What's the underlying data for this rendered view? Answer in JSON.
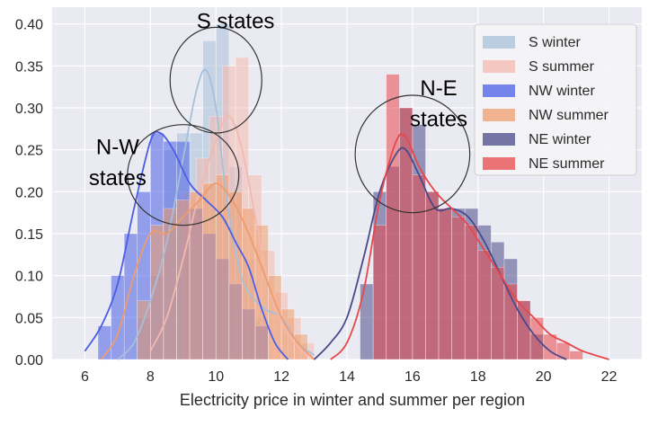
{
  "chart_data": {
    "type": "bar",
    "title": "",
    "xlabel": "Electricity price in winter and summer per region",
    "ylabel": "",
    "xlim": [
      5,
      23
    ],
    "ylim": [
      0,
      0.42
    ],
    "grid": true,
    "legend_position": "top-right",
    "x_ticks": [
      6,
      8,
      10,
      12,
      14,
      16,
      18,
      20,
      22
    ],
    "x_tick_labels": [
      "6",
      "8",
      "10",
      "12",
      "14",
      "16",
      "18",
      "20",
      "22"
    ],
    "y_ticks": [
      0.0,
      0.05,
      0.1,
      0.15,
      0.2,
      0.25,
      0.3,
      0.35,
      0.4
    ],
    "y_tick_labels": [
      "0.00",
      "0.05",
      "0.10",
      "0.15",
      "0.20",
      "0.25",
      "0.30",
      "0.35",
      "0.40"
    ],
    "series": [
      {
        "name": "S winter",
        "color": "#a7c0d9",
        "bin_width": 0.4,
        "bins": [
          [
            7.6,
            0.05
          ],
          [
            8.0,
            0.1
          ],
          [
            8.4,
            0.25
          ],
          [
            8.8,
            0.27
          ],
          [
            9.2,
            0.27
          ],
          [
            9.6,
            0.38
          ],
          [
            10.0,
            0.4
          ],
          [
            10.4,
            0.23
          ],
          [
            10.8,
            0.12
          ],
          [
            11.2,
            0.05
          ]
        ],
        "kde": [
          [
            7.0,
            0.0
          ],
          [
            7.5,
            0.02
          ],
          [
            8.0,
            0.07
          ],
          [
            8.5,
            0.14
          ],
          [
            9.0,
            0.24
          ],
          [
            9.4,
            0.32
          ],
          [
            9.7,
            0.345
          ],
          [
            10.0,
            0.3
          ],
          [
            10.3,
            0.2
          ],
          [
            10.7,
            0.11
          ],
          [
            11.0,
            0.08
          ],
          [
            11.5,
            0.06
          ],
          [
            12.0,
            0.05
          ],
          [
            12.5,
            0.02
          ],
          [
            13.0,
            0.005
          ]
        ]
      },
      {
        "name": "S summer",
        "color": "#f4b9ae",
        "bin_width": 0.4,
        "bins": [
          [
            9.0,
            0.2
          ],
          [
            9.4,
            0.24
          ],
          [
            9.8,
            0.29
          ],
          [
            10.2,
            0.35
          ],
          [
            10.6,
            0.36
          ],
          [
            11.0,
            0.22
          ],
          [
            11.4,
            0.13
          ],
          [
            11.8,
            0.08
          ],
          [
            12.2,
            0.05
          ],
          [
            12.6,
            0.02
          ]
        ],
        "kde": [
          [
            8.0,
            0.01
          ],
          [
            8.5,
            0.05
          ],
          [
            9.0,
            0.12
          ],
          [
            9.5,
            0.2
          ],
          [
            10.0,
            0.26
          ],
          [
            10.4,
            0.29
          ],
          [
            10.8,
            0.25
          ],
          [
            11.2,
            0.17
          ],
          [
            11.6,
            0.09
          ],
          [
            12.0,
            0.045
          ],
          [
            12.5,
            0.015
          ],
          [
            13.0,
            0.0
          ]
        ]
      },
      {
        "name": "NW winter",
        "color": "#4a5fe6",
        "bin_width": 0.4,
        "bins": [
          [
            6.4,
            0.04
          ],
          [
            6.8,
            0.1
          ],
          [
            7.2,
            0.15
          ],
          [
            7.6,
            0.2
          ],
          [
            8.0,
            0.27
          ],
          [
            8.4,
            0.26
          ],
          [
            8.8,
            0.26
          ],
          [
            9.2,
            0.18
          ],
          [
            9.6,
            0.15
          ],
          [
            10.0,
            0.12
          ],
          [
            10.4,
            0.09
          ],
          [
            10.8,
            0.06
          ],
          [
            11.2,
            0.04
          ]
        ],
        "kde": [
          [
            6.0,
            0.01
          ],
          [
            6.5,
            0.04
          ],
          [
            7.0,
            0.09
          ],
          [
            7.5,
            0.18
          ],
          [
            8.0,
            0.26
          ],
          [
            8.3,
            0.27
          ],
          [
            8.7,
            0.25
          ],
          [
            9.2,
            0.21
          ],
          [
            9.7,
            0.19
          ],
          [
            10.2,
            0.17
          ],
          [
            10.6,
            0.14
          ],
          [
            11.0,
            0.11
          ],
          [
            11.4,
            0.06
          ],
          [
            11.8,
            0.02
          ],
          [
            12.2,
            0.0
          ]
        ]
      },
      {
        "name": "NW summer",
        "color": "#ef9c6c",
        "bin_width": 0.4,
        "bins": [
          [
            7.6,
            0.07
          ],
          [
            8.0,
            0.16
          ],
          [
            8.4,
            0.18
          ],
          [
            8.8,
            0.19
          ],
          [
            9.2,
            0.2
          ],
          [
            9.6,
            0.21
          ],
          [
            10.0,
            0.22
          ],
          [
            10.4,
            0.2
          ],
          [
            10.8,
            0.18
          ],
          [
            11.2,
            0.16
          ],
          [
            11.6,
            0.1
          ],
          [
            12.0,
            0.06
          ],
          [
            12.4,
            0.03
          ]
        ],
        "kde": [
          [
            6.5,
            0.0
          ],
          [
            7.0,
            0.03
          ],
          [
            7.5,
            0.1
          ],
          [
            8.0,
            0.15
          ],
          [
            8.5,
            0.15
          ],
          [
            9.0,
            0.17
          ],
          [
            9.5,
            0.19
          ],
          [
            10.0,
            0.21
          ],
          [
            10.5,
            0.19
          ],
          [
            11.0,
            0.15
          ],
          [
            11.5,
            0.1
          ],
          [
            12.0,
            0.05
          ],
          [
            12.5,
            0.02
          ],
          [
            13.0,
            0.0
          ]
        ]
      },
      {
        "name": "NE winter",
        "color": "#4a4a8a",
        "bin_width": 0.4,
        "bins": [
          [
            14.4,
            0.09
          ],
          [
            14.8,
            0.2
          ],
          [
            15.2,
            0.23
          ],
          [
            15.6,
            0.3
          ],
          [
            16.0,
            0.28
          ],
          [
            16.4,
            0.2
          ],
          [
            16.8,
            0.18
          ],
          [
            17.2,
            0.18
          ],
          [
            17.6,
            0.18
          ],
          [
            18.0,
            0.16
          ],
          [
            18.4,
            0.14
          ],
          [
            18.8,
            0.12
          ],
          [
            19.2,
            0.07
          ],
          [
            19.6,
            0.03
          ]
        ],
        "kde": [
          [
            13.0,
            0.0
          ],
          [
            13.5,
            0.02
          ],
          [
            14.0,
            0.05
          ],
          [
            14.5,
            0.12
          ],
          [
            15.0,
            0.2
          ],
          [
            15.5,
            0.245
          ],
          [
            15.8,
            0.25
          ],
          [
            16.2,
            0.22
          ],
          [
            16.7,
            0.18
          ],
          [
            17.2,
            0.18
          ],
          [
            17.7,
            0.17
          ],
          [
            18.2,
            0.14
          ],
          [
            18.7,
            0.1
          ],
          [
            19.2,
            0.06
          ],
          [
            19.7,
            0.03
          ],
          [
            20.2,
            0.01
          ],
          [
            20.7,
            0.0
          ]
        ]
      },
      {
        "name": "NE summer",
        "color": "#e8474a",
        "bin_width": 0.4,
        "bins": [
          [
            14.8,
            0.16
          ],
          [
            15.2,
            0.34
          ],
          [
            15.6,
            0.3
          ],
          [
            16.0,
            0.22
          ],
          [
            16.4,
            0.2
          ],
          [
            16.8,
            0.18
          ],
          [
            17.2,
            0.17
          ],
          [
            17.6,
            0.16
          ],
          [
            18.0,
            0.13
          ],
          [
            18.4,
            0.11
          ],
          [
            18.8,
            0.09
          ],
          [
            19.2,
            0.07
          ],
          [
            19.6,
            0.05
          ],
          [
            20.0,
            0.03
          ],
          [
            20.4,
            0.02
          ],
          [
            20.8,
            0.01
          ]
        ],
        "kde": [
          [
            13.5,
            0.0
          ],
          [
            14.0,
            0.02
          ],
          [
            14.5,
            0.08
          ],
          [
            15.0,
            0.19
          ],
          [
            15.5,
            0.26
          ],
          [
            15.8,
            0.265
          ],
          [
            16.2,
            0.23
          ],
          [
            16.7,
            0.2
          ],
          [
            17.2,
            0.18
          ],
          [
            17.7,
            0.16
          ],
          [
            18.2,
            0.13
          ],
          [
            18.7,
            0.1
          ],
          [
            19.2,
            0.07
          ],
          [
            19.7,
            0.05
          ],
          [
            20.2,
            0.03
          ],
          [
            20.7,
            0.02
          ],
          [
            21.2,
            0.01
          ],
          [
            22.0,
            0.0
          ]
        ]
      }
    ],
    "annotations": [
      {
        "text": "S states",
        "at": [
          10.6,
          0.395
        ]
      },
      {
        "text": "N-W",
        "at": [
          7.0,
          0.245
        ]
      },
      {
        "text": "states",
        "at": [
          7.0,
          0.208
        ]
      },
      {
        "text": "N-E",
        "at": [
          16.8,
          0.315
        ]
      },
      {
        "text": "states",
        "at": [
          16.8,
          0.278
        ]
      }
    ],
    "highlight_circles": [
      {
        "name": "S states",
        "center": [
          10.0,
          0.333
        ],
        "radius_x": 1.4,
        "radius_y": 0.063
      },
      {
        "name": "N-W states",
        "center": [
          9.0,
          0.22
        ],
        "radius_x": 1.7,
        "radius_y": 0.06
      },
      {
        "name": "N-E states",
        "center": [
          16.0,
          0.245
        ],
        "radius_x": 1.75,
        "radius_y": 0.07
      }
    ]
  }
}
